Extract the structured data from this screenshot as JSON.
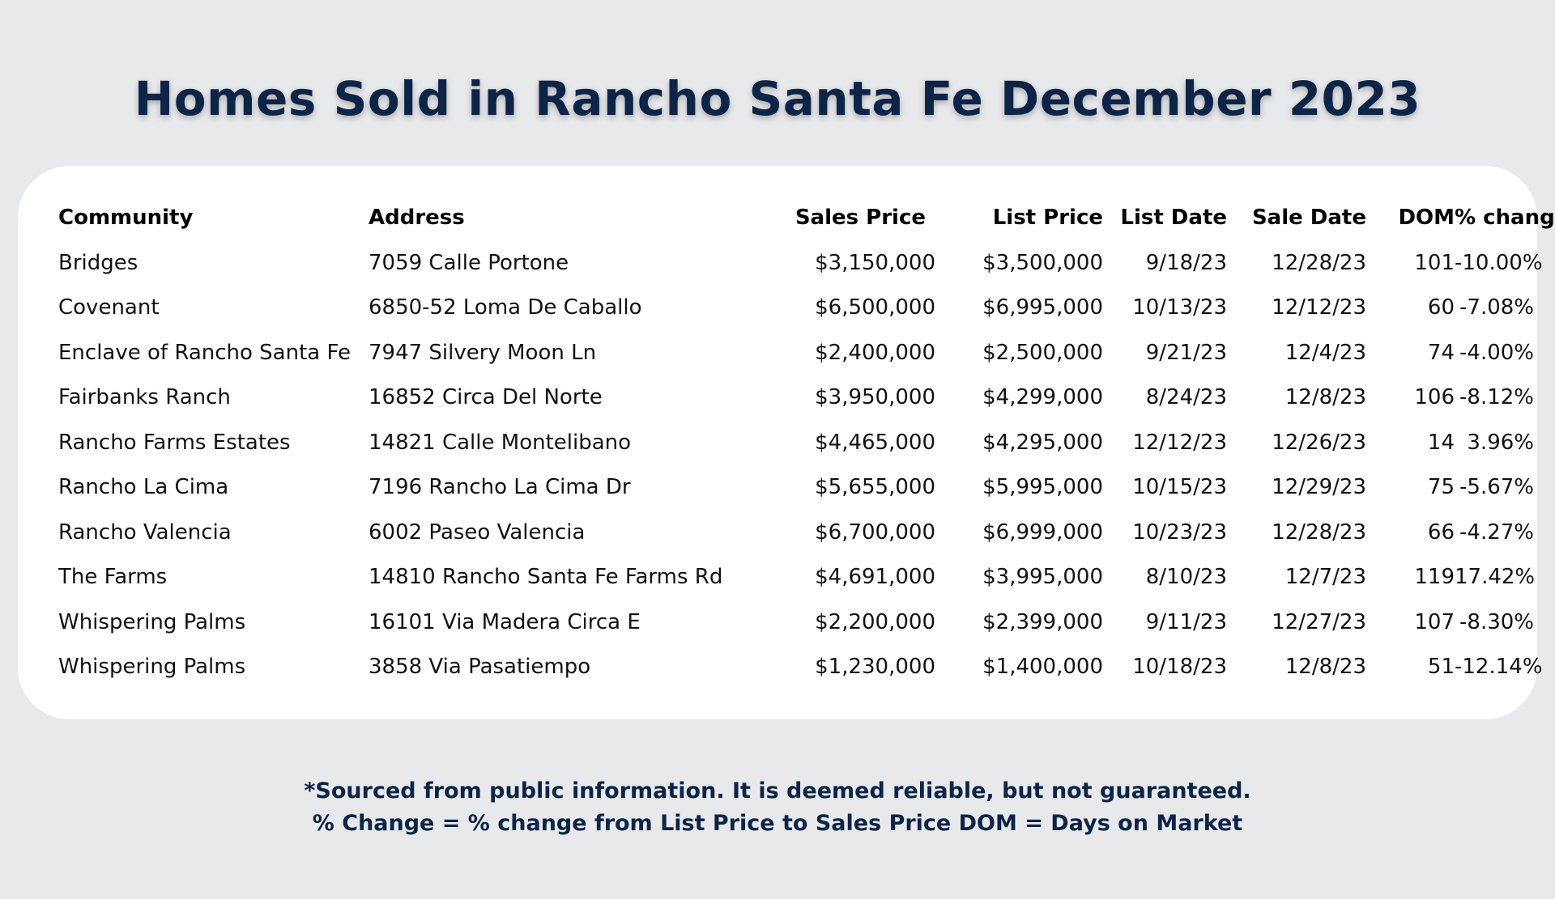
{
  "title": "Homes Sold in Rancho Santa Fe December 2023",
  "table": {
    "headers": {
      "community": "Community",
      "address": "Address",
      "sales_price": "Sales Price",
      "list_price": "List Price",
      "list_date": "List Date",
      "sale_date": "Sale Date",
      "dom": "DOM",
      "pct_change": "% change"
    },
    "rows": [
      [
        "Bridges",
        "7059 Calle Portone",
        "$3,150,000",
        "$3,500,000",
        "9/18/23",
        "12/28/23",
        "101",
        "-10.00%"
      ],
      [
        "Covenant",
        "6850-52 Loma De Caballo",
        "$6,500,000",
        "$6,995,000",
        "10/13/23",
        "12/12/23",
        "60",
        "-7.08%"
      ],
      [
        "Enclave of Rancho Santa Fe",
        "7947 Silvery Moon Ln",
        "$2,400,000",
        "$2,500,000",
        "9/21/23",
        "12/4/23",
        "74",
        "-4.00%"
      ],
      [
        "Fairbanks Ranch",
        "16852 Circa Del Norte",
        "$3,950,000",
        "$4,299,000",
        "8/24/23",
        "12/8/23",
        "106",
        "-8.12%"
      ],
      [
        "Rancho Farms Estates",
        "14821 Calle Montelibano",
        "$4,465,000",
        "$4,295,000",
        "12/12/23",
        "12/26/23",
        "14",
        "3.96%"
      ],
      [
        "Rancho La Cima",
        "7196 Rancho La Cima Dr",
        "$5,655,000",
        "$5,995,000",
        "10/15/23",
        "12/29/23",
        "75",
        "-5.67%"
      ],
      [
        "Rancho Valencia",
        "6002 Paseo Valencia",
        "$6,700,000",
        "$6,999,000",
        "10/23/23",
        "12/28/23",
        "66",
        "-4.27%"
      ],
      [
        "The Farms",
        "14810 Rancho Santa Fe Farms Rd",
        "$4,691,000",
        "$3,995,000",
        "8/10/23",
        "12/7/23",
        "119",
        "17.42%"
      ],
      [
        "Whispering Palms",
        "16101 Via Madera Circa E",
        "$2,200,000",
        "$2,399,000",
        "9/11/23",
        "12/27/23",
        "107",
        "-8.30%"
      ],
      [
        "Whispering Palms",
        "3858 Via Pasatiempo",
        "$1,230,000",
        "$1,400,000",
        "10/18/23",
        "12/8/23",
        "51",
        "-12.14%"
      ]
    ]
  },
  "footer": {
    "line1": "*Sourced from public information. It is deemed reliable, but not guaranteed.",
    "line2": "% Change = % change from List Price to Sales Price DOM = Days on Market"
  },
  "colors": {
    "title": "#0c2447",
    "background": "#e8e9eb",
    "card": "#ffffff"
  }
}
